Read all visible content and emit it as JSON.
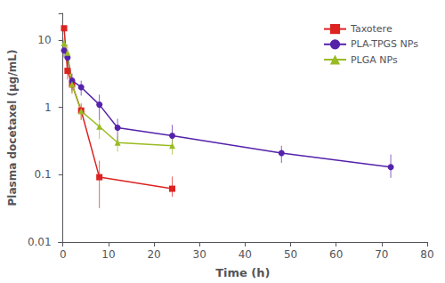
{
  "chart_data": {
    "type": "line",
    "xlabel": "Time (h)",
    "ylabel": "Plasma docetaxel (μg/mL)",
    "xlim": [
      -1,
      80
    ],
    "xticks": [
      0,
      10,
      20,
      30,
      40,
      50,
      60,
      70,
      80
    ],
    "ylim": [
      0.01,
      25
    ],
    "yticks": [
      0.01,
      0.1,
      1,
      10
    ],
    "log": "y",
    "grid": false,
    "legend": "upper right",
    "series": [
      {
        "name": "Taxotere",
        "color": "#dd2222",
        "marker": "square",
        "x": [
          0.25,
          1,
          2,
          4,
          8,
          24
        ],
        "values": [
          15.0,
          3.5,
          2.2,
          0.9,
          0.092,
          0.062
        ],
        "yerr_lo": [
          0,
          0.9,
          0.6,
          0.25,
          0.06,
          0.015
        ],
        "yerr_hi": [
          0,
          0.9,
          0.6,
          0.25,
          0.07,
          0.032
        ]
      },
      {
        "name": "PLA-TPGS NPs",
        "color": "#5522aa",
        "marker": "circle",
        "x": [
          0.25,
          1,
          2,
          4,
          8,
          12,
          24,
          48,
          72
        ],
        "values": [
          7.0,
          5.5,
          2.5,
          2.0,
          1.1,
          0.5,
          0.38,
          0.21,
          0.13
        ],
        "yerr_lo": [
          1.5,
          1.5,
          0.7,
          0.5,
          0.45,
          0.18,
          0.12,
          0.06,
          0.04
        ],
        "yerr_hi": [
          1.5,
          1.5,
          0.7,
          0.5,
          0.45,
          0.18,
          0.17,
          0.06,
          0.07
        ]
      },
      {
        "name": "PLGA NPs",
        "color": "#99bb22",
        "marker": "triangle",
        "x": [
          0.25,
          1,
          2,
          4,
          8,
          12,
          24
        ],
        "values": [
          9.0,
          6.5,
          2.2,
          0.88,
          0.52,
          0.3,
          0.27
        ],
        "yerr_lo": [
          2.0,
          2.2,
          0.55,
          0.22,
          0.18,
          0.08,
          0.07
        ],
        "yerr_hi": [
          2.0,
          2.2,
          0.55,
          0.22,
          0.18,
          0.08,
          0.07
        ]
      }
    ]
  }
}
